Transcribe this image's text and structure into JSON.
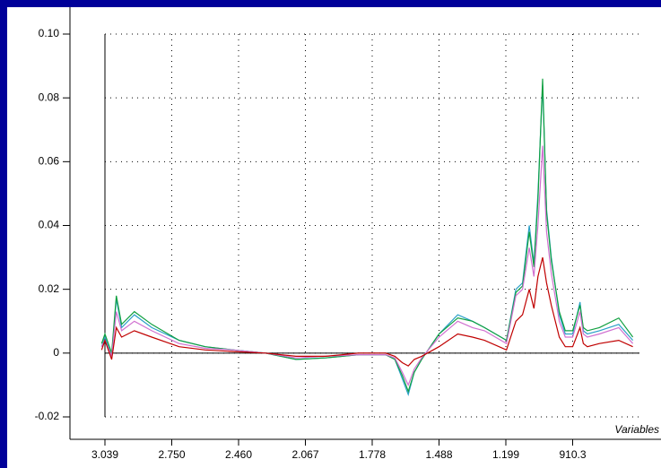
{
  "chart_data": {
    "type": "line",
    "x_label": "Variables",
    "x": [
      -5,
      0,
      10,
      17,
      25,
      44,
      70,
      111,
      150,
      192,
      240,
      286,
      330,
      380,
      420,
      434,
      445,
      454,
      463,
      474,
      500,
      528,
      550,
      568,
      601,
      615,
      625,
      635,
      642,
      648,
      655,
      661,
      668,
      680,
      689,
      700,
      711,
      716,
      722,
      740,
      769,
      790
    ],
    "xlim": [
      0,
      800
    ],
    "xticks": [
      {
        "value": 0,
        "label": "3.039"
      },
      {
        "value": 100,
        "label": "2.750"
      },
      {
        "value": 200,
        "label": "2.460"
      },
      {
        "value": 300,
        "label": "2.067"
      },
      {
        "value": 400,
        "label": "1.778"
      },
      {
        "value": 500,
        "label": "1.488"
      },
      {
        "value": 600,
        "label": "1.199"
      },
      {
        "value": 700,
        "label": "910.3"
      }
    ],
    "ylim": [
      -0.02,
      0.1
    ],
    "yticks": [
      -0.02,
      0,
      0.02,
      0.04,
      0.06,
      0.08,
      {
        "value": 0.1,
        "label": "0.10"
      }
    ],
    "grid": true,
    "series": [
      {
        "name": "teal",
        "color": "#2aa0c8",
        "values": [
          0.002,
          0.005,
          -0.001,
          0.017,
          0.008,
          0.012,
          0.008,
          0.004,
          0.002,
          0.001,
          0,
          -0.002,
          -0.0015,
          -0.0005,
          -0.0005,
          -0.002,
          -0.008,
          -0.013,
          -0.006,
          -0.002,
          0.006,
          0.012,
          0.01,
          0.008,
          0.004,
          0.02,
          0.022,
          0.04,
          0.028,
          0.05,
          0.084,
          0.045,
          0.03,
          0.012,
          0.006,
          0.006,
          0.016,
          0.007,
          0.006,
          0.007,
          0.009,
          0.004
        ]
      },
      {
        "name": "green",
        "color": "#10a040",
        "values": [
          0.003,
          0.006,
          0,
          0.018,
          0.009,
          0.013,
          0.009,
          0.004,
          0.002,
          0.001,
          0,
          -0.002,
          -0.0015,
          -0.0005,
          -0.0005,
          -0.002,
          -0.007,
          -0.012,
          -0.006,
          -0.002,
          0.006,
          0.011,
          0.01,
          0.008,
          0.004,
          0.019,
          0.021,
          0.038,
          0.027,
          0.048,
          0.086,
          0.044,
          0.029,
          0.013,
          0.007,
          0.007,
          0.015,
          0.008,
          0.007,
          0.008,
          0.011,
          0.005
        ]
      },
      {
        "name": "magenta",
        "color": "#d070d0",
        "values": [
          0.002,
          0.004,
          -0.001,
          0.013,
          0.007,
          0.01,
          0.007,
          0.003,
          0.0015,
          0.001,
          0,
          -0.0015,
          -0.001,
          -0.0005,
          -0.0005,
          -0.0015,
          -0.006,
          -0.01,
          -0.005,
          -0.0015,
          0.005,
          0.01,
          0.008,
          0.007,
          0.003,
          0.018,
          0.02,
          0.033,
          0.024,
          0.04,
          0.065,
          0.038,
          0.025,
          0.01,
          0.005,
          0.005,
          0.013,
          0.006,
          0.005,
          0.006,
          0.008,
          0.003
        ]
      },
      {
        "name": "red",
        "color": "#c00000",
        "values": [
          0.001,
          0.004,
          -0.002,
          0.008,
          0.005,
          0.007,
          0.005,
          0.002,
          0.001,
          0.0005,
          0,
          -0.001,
          -0.001,
          0,
          0,
          -0.001,
          -0.003,
          -0.004,
          -0.002,
          -0.001,
          0.002,
          0.006,
          0.005,
          0.004,
          0.001,
          0.01,
          0.012,
          0.02,
          0.014,
          0.024,
          0.03,
          0.022,
          0.015,
          0.005,
          0.002,
          0.002,
          0.008,
          0.003,
          0.002,
          0.003,
          0.004,
          0.002
        ]
      }
    ]
  }
}
